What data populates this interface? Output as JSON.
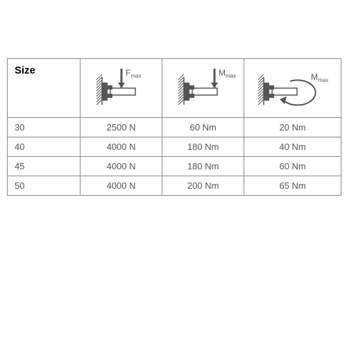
{
  "header": {
    "size_label": "Size"
  },
  "columns": [
    {
      "key": "fmax",
      "symbol": "F",
      "sub": "max",
      "icon": "force"
    },
    {
      "key": "mmax_bend",
      "symbol": "M",
      "sub": "max",
      "icon": "moment_bend"
    },
    {
      "key": "mmax_tors",
      "symbol": "M",
      "sub": "max",
      "icon": "moment_tors"
    }
  ],
  "rows": [
    {
      "size": "30",
      "fmax": "2500 N",
      "mmax_bend": "60 Nm",
      "mmax_tors": "20 Nm"
    },
    {
      "size": "40",
      "fmax": "4000 N",
      "mmax_bend": "180 Nm",
      "mmax_tors": "40 Nm"
    },
    {
      "size": "45",
      "fmax": "4000 N",
      "mmax_bend": "180 Nm",
      "mmax_tors": "60 Nm"
    },
    {
      "size": "50",
      "fmax": "4000 N",
      "mmax_bend": "200 Nm",
      "mmax_tors": "65 Nm"
    }
  ],
  "style": {
    "stroke": "#555555",
    "fill": "#555555",
    "hatch_gap": 4
  }
}
